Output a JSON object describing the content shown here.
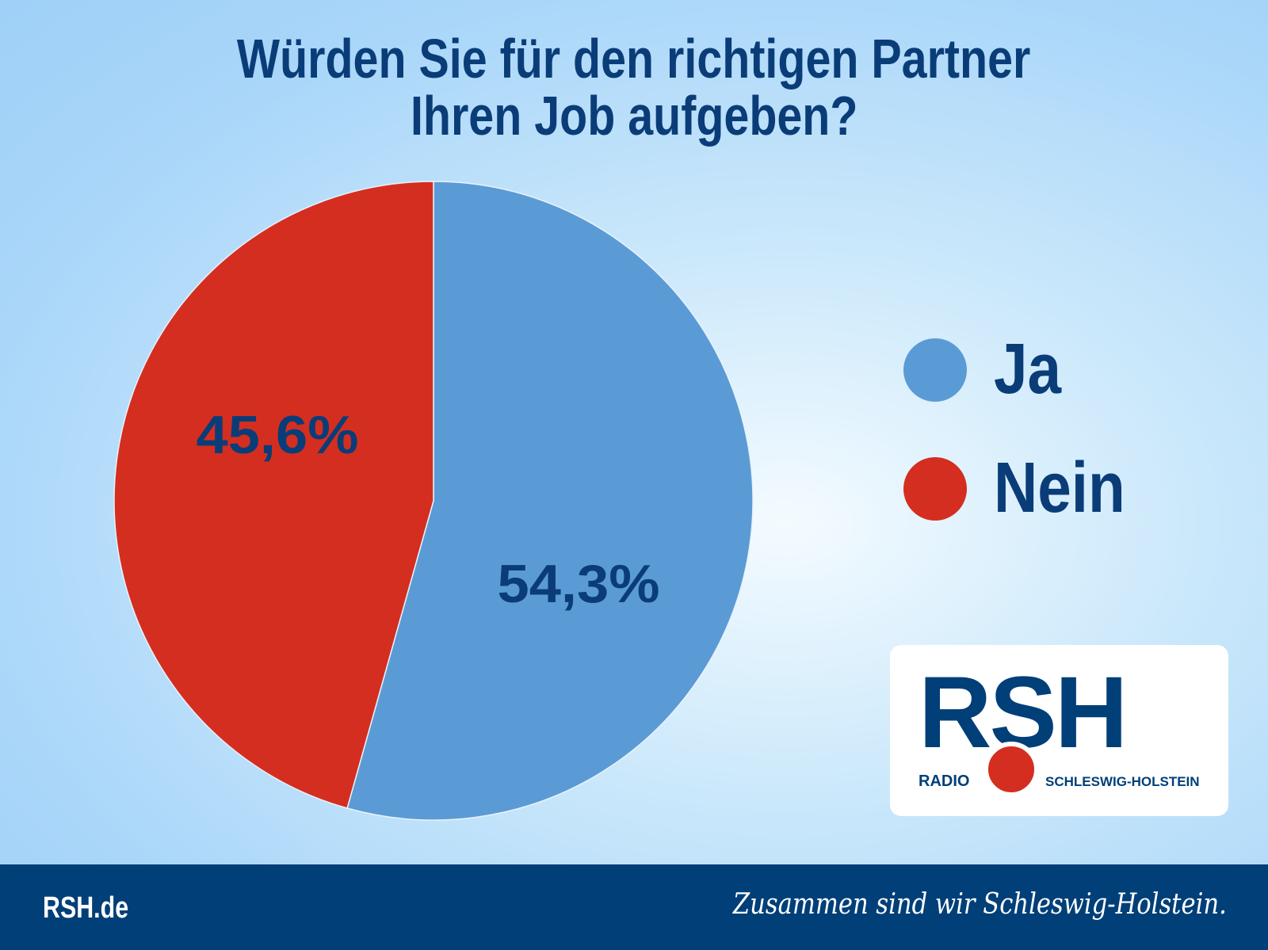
{
  "chart_data": {
    "type": "pie",
    "title_lines": [
      "Würden Sie für den richtigen Partner",
      "Ihren Job aufgeben?"
    ],
    "categories": [
      "Ja",
      "Nein"
    ],
    "values": [
      54.3,
      45.6
    ],
    "data_labels": [
      "54,3%",
      "45,6%"
    ],
    "colors": [
      "#5b9bd5",
      "#d42e20"
    ],
    "start": "top, clockwise",
    "legend_position": "right"
  },
  "colors": {
    "text": "#0a3d78",
    "footer": "#003f78"
  },
  "logo": {
    "main": "RSH",
    "left": "RADIO",
    "right": "SCHLESWIG-HOLSTEIN"
  },
  "footer": {
    "site": "RSH.de",
    "slogan": "Zusammen sind wir Schleswig-Holstein."
  }
}
